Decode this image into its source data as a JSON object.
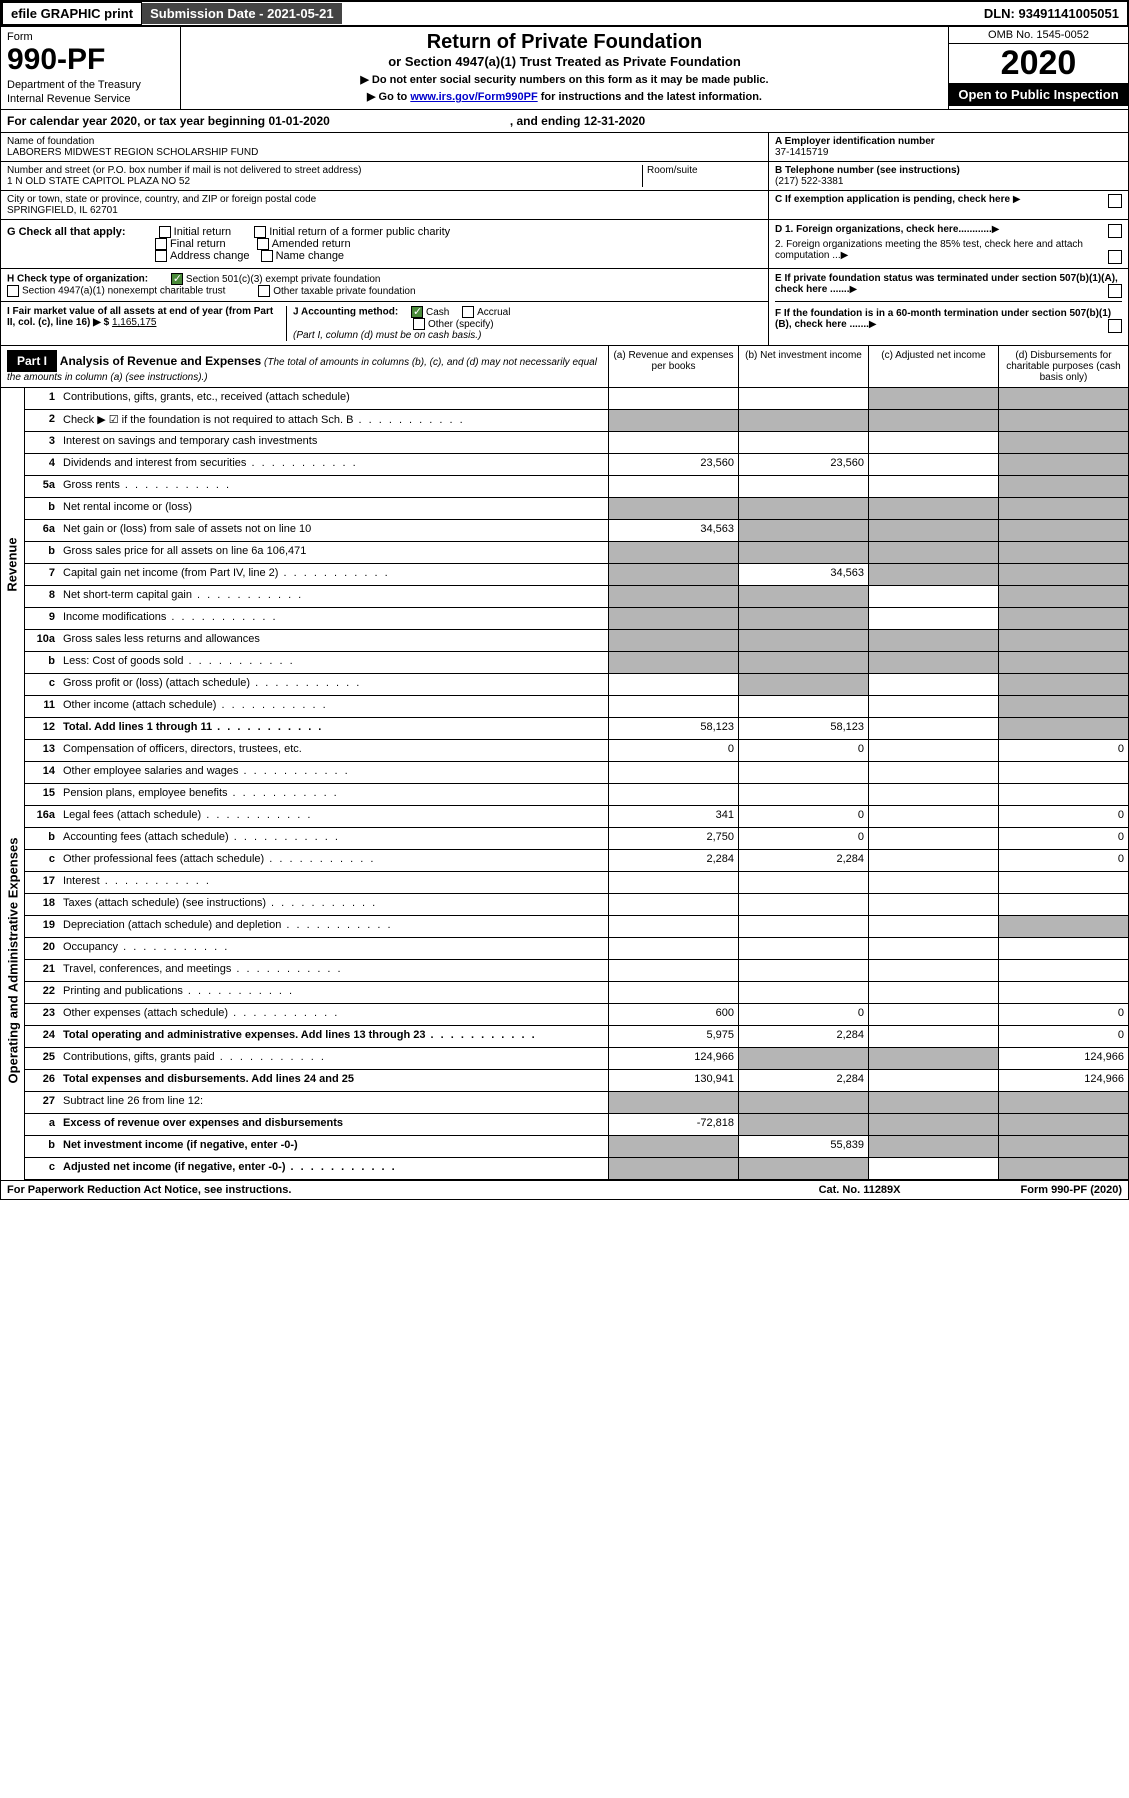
{
  "topbar": {
    "efile": "efile GRAPHIC print",
    "submission_label": "Submission Date - 2021-05-21",
    "dln": "DLN: 93491141005051"
  },
  "header": {
    "form_label": "Form",
    "form_number": "990-PF",
    "dept1": "Department of the Treasury",
    "dept2": "Internal Revenue Service",
    "title": "Return of Private Foundation",
    "subtitle": "or Section 4947(a)(1) Trust Treated as Private Foundation",
    "instr1": "▶ Do not enter social security numbers on this form as it may be made public.",
    "instr2_pre": "▶ Go to ",
    "instr2_link": "www.irs.gov/Form990PF",
    "instr2_post": " for instructions and the latest information.",
    "omb": "OMB No. 1545-0052",
    "year": "2020",
    "open": "Open to Public Inspection"
  },
  "calyear": {
    "text_pre": "For calendar year 2020, or tax year beginning 01-01-2020",
    "text_end": ", and ending 12-31-2020"
  },
  "info": {
    "name_label": "Name of foundation",
    "name_val": "LABORERS MIDWEST REGION SCHOLARSHIP FUND",
    "addr_label": "Number and street (or P.O. box number if mail is not delivered to street address)",
    "addr_val": "1 N OLD STATE CAPITOL PLAZA NO 52",
    "room_label": "Room/suite",
    "city_label": "City or town, state or province, country, and ZIP or foreign postal code",
    "city_val": "SPRINGFIELD, IL  62701",
    "ein_label": "A Employer identification number",
    "ein_val": "37-1415719",
    "phone_label": "B Telephone number (see instructions)",
    "phone_val": "(217) 522-3381",
    "c_label": "C If exemption application is pending, check here"
  },
  "g": {
    "label": "G Check all that apply:",
    "opts": [
      "Initial return",
      "Final return",
      "Address change",
      "Initial return of a former public charity",
      "Amended return",
      "Name change"
    ]
  },
  "d": {
    "d1": "D 1. Foreign organizations, check here............",
    "d2": "2. Foreign organizations meeting the 85% test, check here and attach computation ...",
    "e": "E  If private foundation status was terminated under section 507(b)(1)(A), check here .......",
    "f": "F  If the foundation is in a 60-month termination under section 507(b)(1)(B), check here ......."
  },
  "h": {
    "label": "H Check type of organization:",
    "opt1": "Section 501(c)(3) exempt private foundation",
    "opt2": "Section 4947(a)(1) nonexempt charitable trust",
    "opt3": "Other taxable private foundation"
  },
  "i": {
    "label": "I Fair market value of all assets at end of year (from Part II, col. (c), line 16) ▶ $",
    "val": "1,165,175"
  },
  "j": {
    "label": "J Accounting method:",
    "cash": "Cash",
    "accrual": "Accrual",
    "other": "Other (specify)",
    "note": "(Part I, column (d) must be on cash basis.)"
  },
  "part1": {
    "tag": "Part I",
    "title": "Analysis of Revenue and Expenses",
    "title_note": " (The total of amounts in columns (b), (c), and (d) may not necessarily equal the amounts in column (a) (see instructions).)",
    "col_a": "(a) Revenue and expenses per books",
    "col_b": "(b) Net investment income",
    "col_c": "(c) Adjusted net income",
    "col_d": "(d) Disbursements for charitable purposes (cash basis only)"
  },
  "side_labels": {
    "revenue": "Revenue",
    "expenses": "Operating and Administrative Expenses"
  },
  "rows": [
    {
      "n": "1",
      "d": "Contributions, gifts, grants, etc., received (attach schedule)",
      "a": "",
      "b": "",
      "c": "g",
      "dd": "g"
    },
    {
      "n": "2",
      "d": "Check ▶ ☑ if the foundation is not required to attach Sch. B",
      "dots": true,
      "a": "g",
      "b": "g",
      "c": "g",
      "dd": "g"
    },
    {
      "n": "3",
      "d": "Interest on savings and temporary cash investments",
      "a": "",
      "b": "",
      "c": "",
      "dd": "g"
    },
    {
      "n": "4",
      "d": "Dividends and interest from securities",
      "dots": true,
      "a": "23,560",
      "b": "23,560",
      "c": "",
      "dd": "g"
    },
    {
      "n": "5a",
      "d": "Gross rents",
      "dots": true,
      "a": "",
      "b": "",
      "c": "",
      "dd": "g"
    },
    {
      "n": "b",
      "d": "Net rental income or (loss)",
      "a": "g",
      "b": "g",
      "c": "g",
      "dd": "g"
    },
    {
      "n": "6a",
      "d": "Net gain or (loss) from sale of assets not on line 10",
      "a": "34,563",
      "b": "g",
      "c": "g",
      "dd": "g"
    },
    {
      "n": "b",
      "d": "Gross sales price for all assets on line 6a          106,471",
      "a": "g",
      "b": "g",
      "c": "g",
      "dd": "g"
    },
    {
      "n": "7",
      "d": "Capital gain net income (from Part IV, line 2)",
      "dots": true,
      "a": "g",
      "b": "34,563",
      "c": "g",
      "dd": "g"
    },
    {
      "n": "8",
      "d": "Net short-term capital gain",
      "dots": true,
      "a": "g",
      "b": "g",
      "c": "",
      "dd": "g"
    },
    {
      "n": "9",
      "d": "Income modifications",
      "dots": true,
      "a": "g",
      "b": "g",
      "c": "",
      "dd": "g"
    },
    {
      "n": "10a",
      "d": "Gross sales less returns and allowances",
      "a": "g",
      "b": "g",
      "c": "g",
      "dd": "g"
    },
    {
      "n": "b",
      "d": "Less: Cost of goods sold",
      "dots": true,
      "a": "g",
      "b": "g",
      "c": "g",
      "dd": "g"
    },
    {
      "n": "c",
      "d": "Gross profit or (loss) (attach schedule)",
      "dots": true,
      "a": "",
      "b": "g",
      "c": "",
      "dd": "g"
    },
    {
      "n": "11",
      "d": "Other income (attach schedule)",
      "dots": true,
      "a": "",
      "b": "",
      "c": "",
      "dd": "g"
    },
    {
      "n": "12",
      "d": "Total. Add lines 1 through 11",
      "bold": true,
      "dots": true,
      "a": "58,123",
      "b": "58,123",
      "c": "",
      "dd": "g"
    }
  ],
  "exp_rows": [
    {
      "n": "13",
      "d": "Compensation of officers, directors, trustees, etc.",
      "a": "0",
      "b": "0",
      "c": "",
      "dd": "0"
    },
    {
      "n": "14",
      "d": "Other employee salaries and wages",
      "dots": true,
      "a": "",
      "b": "",
      "c": "",
      "dd": ""
    },
    {
      "n": "15",
      "d": "Pension plans, employee benefits",
      "dots": true,
      "a": "",
      "b": "",
      "c": "",
      "dd": ""
    },
    {
      "n": "16a",
      "d": "Legal fees (attach schedule)",
      "dots": true,
      "a": "341",
      "b": "0",
      "c": "",
      "dd": "0"
    },
    {
      "n": "b",
      "d": "Accounting fees (attach schedule)",
      "dots": true,
      "a": "2,750",
      "b": "0",
      "c": "",
      "dd": "0"
    },
    {
      "n": "c",
      "d": "Other professional fees (attach schedule)",
      "dots": true,
      "a": "2,284",
      "b": "2,284",
      "c": "",
      "dd": "0"
    },
    {
      "n": "17",
      "d": "Interest",
      "dots": true,
      "a": "",
      "b": "",
      "c": "",
      "dd": ""
    },
    {
      "n": "18",
      "d": "Taxes (attach schedule) (see instructions)",
      "dots": true,
      "a": "",
      "b": "",
      "c": "",
      "dd": ""
    },
    {
      "n": "19",
      "d": "Depreciation (attach schedule) and depletion",
      "dots": true,
      "a": "",
      "b": "",
      "c": "",
      "dd": "g"
    },
    {
      "n": "20",
      "d": "Occupancy",
      "dots": true,
      "a": "",
      "b": "",
      "c": "",
      "dd": ""
    },
    {
      "n": "21",
      "d": "Travel, conferences, and meetings",
      "dots": true,
      "a": "",
      "b": "",
      "c": "",
      "dd": ""
    },
    {
      "n": "22",
      "d": "Printing and publications",
      "dots": true,
      "a": "",
      "b": "",
      "c": "",
      "dd": ""
    },
    {
      "n": "23",
      "d": "Other expenses (attach schedule)",
      "dots": true,
      "a": "600",
      "b": "0",
      "c": "",
      "dd": "0"
    },
    {
      "n": "24",
      "d": "Total operating and administrative expenses. Add lines 13 through 23",
      "bold": true,
      "dots": true,
      "a": "5,975",
      "b": "2,284",
      "c": "",
      "dd": "0"
    },
    {
      "n": "25",
      "d": "Contributions, gifts, grants paid",
      "dots": true,
      "a": "124,966",
      "b": "g",
      "c": "g",
      "dd": "124,966"
    },
    {
      "n": "26",
      "d": "Total expenses and disbursements. Add lines 24 and 25",
      "bold": true,
      "a": "130,941",
      "b": "2,284",
      "c": "",
      "dd": "124,966"
    },
    {
      "n": "27",
      "d": "Subtract line 26 from line 12:",
      "a": "g",
      "b": "g",
      "c": "g",
      "dd": "g"
    },
    {
      "n": "a",
      "d": "Excess of revenue over expenses and disbursements",
      "bold": true,
      "a": "-72,818",
      "b": "g",
      "c": "g",
      "dd": "g"
    },
    {
      "n": "b",
      "d": "Net investment income (if negative, enter -0-)",
      "bold": true,
      "a": "g",
      "b": "55,839",
      "c": "g",
      "dd": "g"
    },
    {
      "n": "c",
      "d": "Adjusted net income (if negative, enter -0-)",
      "bold": true,
      "dots": true,
      "a": "g",
      "b": "g",
      "c": "",
      "dd": "g"
    }
  ],
  "footer": {
    "left": "For Paperwork Reduction Act Notice, see instructions.",
    "mid": "Cat. No. 11289X",
    "right": "Form 990-PF (2020)"
  },
  "colors": {
    "grey": "#b5b5b5",
    "black": "#000000",
    "link": "#0000cc",
    "check_green": "#4a8a3a"
  }
}
